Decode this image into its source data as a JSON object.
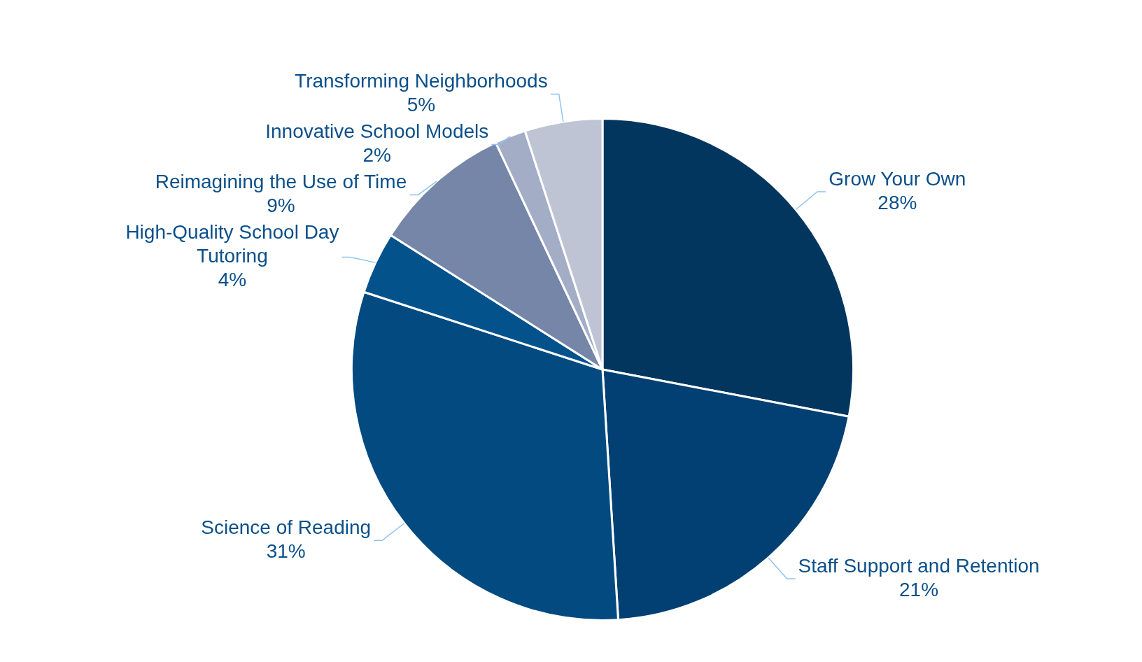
{
  "chart_data": {
    "type": "pie",
    "categories": [
      "Grow Your Own",
      "Staff Support and Retention",
      "Science of Reading",
      "High-Quality School Day Tutoring",
      "Reimagining the Use of Time",
      "Innovative School Models",
      "Transforming Neighborhoods"
    ],
    "values": [
      28,
      21,
      31,
      4,
      9,
      2,
      5
    ],
    "value_labels": [
      "28%",
      "21%",
      "31%",
      "4%",
      "9%",
      "2%",
      "5%"
    ],
    "colors": [
      "#03365f",
      "#023f73",
      "#024a80",
      "#03528c",
      "#7586a8",
      "#a3adc6",
      "#bfc4d5"
    ],
    "legend": false
  }
}
